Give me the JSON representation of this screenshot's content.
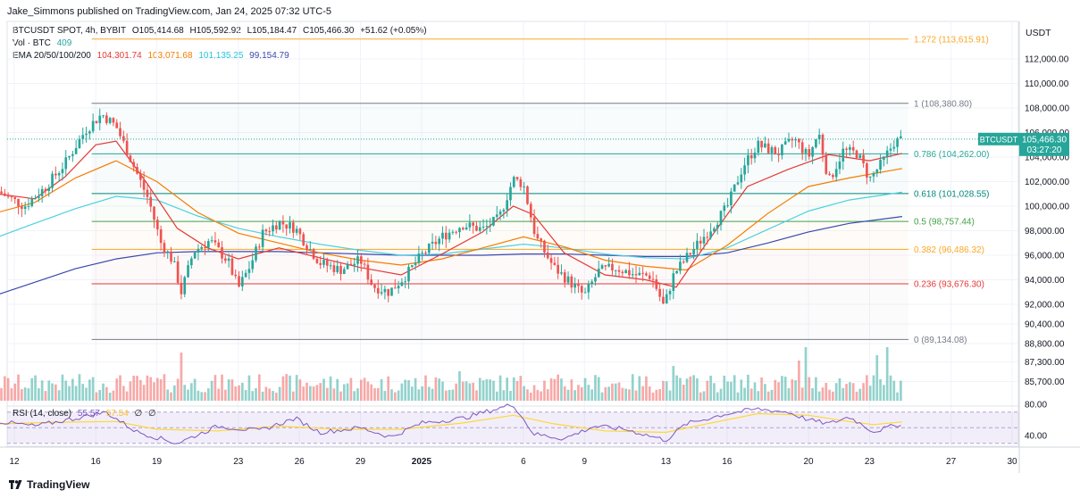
{
  "header": {
    "publisher_line": "Jake_Simmons published on TradingView.com, Jan 24, 2025 07:32 UTC-5"
  },
  "legend": {
    "symbol_line": "BTCUSDT SPOT, 4h, BYBIT",
    "ohlc": [
      {
        "k": "O",
        "v": "105,414.68"
      },
      {
        "k": "H",
        "v": "105,592.92"
      },
      {
        "k": "L",
        "v": "105,184.47"
      },
      {
        "k": "C",
        "v": "105,466.30"
      }
    ],
    "change": "+51.62 (+0.05%)",
    "vol_label": "Vol · BTC",
    "vol_value": "409",
    "ema_label": "EMA 20/50/100/200",
    "ema_values": [
      "104,301.74",
      "103,071.68",
      "101,135.25",
      "99,154.79"
    ]
  },
  "rsi_label": "RSI (14, close)",
  "rsi_value": "55.57",
  "rsi_value2": "57.54",
  "rsi_empty1": "∅",
  "rsi_empty2": "∅",
  "footer": {
    "brand": "TradingView"
  },
  "price_tag": {
    "symbol": "BTCUSDT",
    "price": "105,466.30",
    "countdown": "03:27:20"
  },
  "colors": {
    "up": "#26a69a",
    "down": "#ef5350",
    "ema20": "#e53935",
    "ema50": "#f57c00",
    "ema100": "#4dd0e1",
    "ema200": "#3949ab",
    "rsi": "#7e57c2",
    "rsi_ma": "#fdd835"
  },
  "chart_data": {
    "type": "candlestick",
    "currency_label": "USDT",
    "y_ticks": [
      "112,000.00",
      "110,000.00",
      "108,000.00",
      "106,000.00",
      "104,000.00",
      "102,000.00",
      "100,000.00",
      "98,000.00",
      "96,000.00",
      "94,000.00",
      "92,000.00",
      "90,400.00",
      "88,800.00",
      "87,300.00",
      "85,700.00"
    ],
    "y_tick_values": [
      112000,
      110000,
      108000,
      106000,
      104000,
      102000,
      100000,
      98000,
      96000,
      94000,
      92000,
      90400,
      88800,
      87300,
      85700
    ],
    "rsi_ticks": [
      "80.00",
      "40.00"
    ],
    "x_ticks": [
      {
        "label": "12",
        "day": 12
      },
      {
        "label": "16",
        "day": 16
      },
      {
        "label": "19",
        "day": 19
      },
      {
        "label": "23",
        "day": 23
      },
      {
        "label": "26",
        "day": 26
      },
      {
        "label": "29",
        "day": 29
      },
      {
        "label": "2025",
        "day": 32,
        "bold": true
      },
      {
        "label": "6",
        "day": 37
      },
      {
        "label": "9",
        "day": 40
      },
      {
        "label": "13",
        "day": 44
      },
      {
        "label": "16",
        "day": 47
      },
      {
        "label": "20",
        "day": 51
      },
      {
        "label": "23",
        "day": 54
      },
      {
        "label": "27",
        "day": 58
      },
      {
        "label": "30",
        "day": 61
      }
    ],
    "fib_levels": [
      {
        "ratio": 1.272,
        "label": "1.272 (113,615.91)",
        "price": 113615.91,
        "color": "#f9a825"
      },
      {
        "ratio": 1,
        "label": "1 (108,380.80)",
        "price": 108380.8,
        "color": "#787b86"
      },
      {
        "ratio": 0.786,
        "label": "0.786 (104,262.00)",
        "price": 104262.0,
        "color": "#26a69a"
      },
      {
        "ratio": 0.618,
        "label": "0.618 (101,028.55)",
        "price": 101028.55,
        "color": "#00897b"
      },
      {
        "ratio": 0.5,
        "label": "0.5 (98,757.44)",
        "price": 98757.44,
        "color": "#43a047"
      },
      {
        "ratio": 0.382,
        "label": "0.382 (96,486.32)",
        "price": 96486.32,
        "color": "#f9a825"
      },
      {
        "ratio": 0.236,
        "label": "0.236 (93,676.30)",
        "price": 93676.3,
        "color": "#e53935"
      },
      {
        "ratio": 0,
        "label": "0 (89,134.08)",
        "price": 89134.08,
        "color": "#787b86"
      }
    ],
    "last_price": 105466.3,
    "price_path": [
      [
        11.2,
        101200
      ],
      [
        12.5,
        100000
      ],
      [
        13.5,
        101500
      ],
      [
        14.5,
        103500
      ],
      [
        15.5,
        106200
      ],
      [
        16.3,
        107500
      ],
      [
        17,
        106500
      ],
      [
        17.8,
        103500
      ],
      [
        18.6,
        100500
      ],
      [
        19.2,
        97000
      ],
      [
        19.8,
        95500
      ],
      [
        20.2,
        93000
      ],
      [
        20.8,
        96300
      ],
      [
        21.6,
        97200
      ],
      [
        22.5,
        95500
      ],
      [
        23,
        93300
      ],
      [
        23.6,
        95200
      ],
      [
        24.2,
        97800
      ],
      [
        25,
        98700
      ],
      [
        25.8,
        98200
      ],
      [
        26.3,
        97000
      ],
      [
        27,
        95400
      ],
      [
        28,
        94800
      ],
      [
        29,
        95600
      ],
      [
        29.6,
        93500
      ],
      [
        30.4,
        93000
      ],
      [
        31.2,
        94300
      ],
      [
        32,
        96000
      ],
      [
        33,
        97500
      ],
      [
        34,
        98500
      ],
      [
        35,
        98100
      ],
      [
        35.8,
        99000
      ],
      [
        36.5,
        102200
      ],
      [
        37,
        101800
      ],
      [
        37.6,
        97500
      ],
      [
        38.5,
        95000
      ],
      [
        39.3,
        93800
      ],
      [
        40,
        92700
      ],
      [
        40.7,
        94700
      ],
      [
        41.5,
        95000
      ],
      [
        42.5,
        94400
      ],
      [
        43.3,
        94300
      ],
      [
        43.9,
        91800
      ],
      [
        44.4,
        94500
      ],
      [
        45.2,
        96200
      ],
      [
        46,
        97800
      ],
      [
        47,
        99900
      ],
      [
        47.8,
        103300
      ],
      [
        48.5,
        105000
      ],
      [
        49.5,
        104300
      ],
      [
        50.3,
        105500
      ],
      [
        51,
        104000
      ],
      [
        51.5,
        106000
      ],
      [
        52,
        102000
      ],
      [
        52.7,
        104500
      ],
      [
        53.4,
        104300
      ],
      [
        54,
        102200
      ],
      [
        54.6,
        103500
      ],
      [
        55.2,
        105200
      ],
      [
        55.6,
        105466
      ]
    ],
    "ema20": [
      [
        11.2,
        101000
      ],
      [
        13,
        100600
      ],
      [
        14.5,
        102400
      ],
      [
        16,
        105000
      ],
      [
        17,
        105300
      ],
      [
        18.5,
        101900
      ],
      [
        20,
        98200
      ],
      [
        21.5,
        96600
      ],
      [
        23,
        95700
      ],
      [
        25,
        96600
      ],
      [
        27,
        95800
      ],
      [
        29,
        95000
      ],
      [
        31,
        94400
      ],
      [
        33,
        96100
      ],
      [
        35,
        97900
      ],
      [
        36.5,
        100000
      ],
      [
        37.5,
        99300
      ],
      [
        39,
        96200
      ],
      [
        41,
        94400
      ],
      [
        43,
        94000
      ],
      [
        44.5,
        93400
      ],
      [
        46,
        97000
      ],
      [
        48,
        101600
      ],
      [
        50,
        103000
      ],
      [
        52,
        104200
      ],
      [
        54,
        103700
      ],
      [
        55.6,
        104301
      ]
    ],
    "ema50": [
      [
        11.2,
        99500
      ],
      [
        13,
        100300
      ],
      [
        15,
        102300
      ],
      [
        17,
        103700
      ],
      [
        19,
        102000
      ],
      [
        21,
        99500
      ],
      [
        23,
        97800
      ],
      [
        25,
        97000
      ],
      [
        27,
        96200
      ],
      [
        29,
        95600
      ],
      [
        31,
        95200
      ],
      [
        33,
        95700
      ],
      [
        35,
        96600
      ],
      [
        37,
        97500
      ],
      [
        39,
        96700
      ],
      [
        41,
        95600
      ],
      [
        43,
        95100
      ],
      [
        45,
        94800
      ],
      [
        47,
        96800
      ],
      [
        49,
        99400
      ],
      [
        51,
        101600
      ],
      [
        53,
        102300
      ],
      [
        55.6,
        103071
      ]
    ],
    "ema100": [
      [
        11.2,
        97500
      ],
      [
        13,
        98600
      ],
      [
        15,
        99800
      ],
      [
        17,
        100800
      ],
      [
        19,
        100500
      ],
      [
        21,
        99200
      ],
      [
        23,
        98200
      ],
      [
        25,
        97500
      ],
      [
        27,
        96900
      ],
      [
        29,
        96400
      ],
      [
        31,
        96000
      ],
      [
        33,
        96100
      ],
      [
        35,
        96500
      ],
      [
        37,
        96900
      ],
      [
        39,
        96600
      ],
      [
        41,
        96100
      ],
      [
        43,
        95800
      ],
      [
        45,
        95700
      ],
      [
        47,
        96600
      ],
      [
        49,
        98100
      ],
      [
        51,
        99600
      ],
      [
        53,
        100500
      ],
      [
        55.6,
        101135
      ]
    ],
    "ema200": [
      [
        11.2,
        92800
      ],
      [
        13,
        93800
      ],
      [
        15,
        94900
      ],
      [
        17,
        95700
      ],
      [
        19,
        96200
      ],
      [
        21,
        96300
      ],
      [
        23,
        96300
      ],
      [
        25,
        96300
      ],
      [
        27,
        96200
      ],
      [
        29,
        96100
      ],
      [
        31,
        96000
      ],
      [
        33,
        96000
      ],
      [
        35,
        96000
      ],
      [
        37,
        96100
      ],
      [
        39,
        96100
      ],
      [
        41,
        96000
      ],
      [
        43,
        95900
      ],
      [
        45,
        95900
      ],
      [
        47,
        96200
      ],
      [
        49,
        97000
      ],
      [
        51,
        97900
      ],
      [
        53,
        98600
      ],
      [
        55.6,
        99154
      ]
    ],
    "volume_spikes": [
      [
        20.2,
        0.9
      ],
      [
        33.8,
        0.55
      ],
      [
        44.4,
        0.65
      ],
      [
        50.9,
        1.0
      ],
      [
        50.5,
        0.75
      ],
      [
        54.4,
        0.85
      ],
      [
        54.9,
        1.0
      ]
    ],
    "rsi_path": [
      [
        11.2,
        58
      ],
      [
        13,
        52
      ],
      [
        15,
        62
      ],
      [
        16.5,
        70
      ],
      [
        18,
        45
      ],
      [
        20,
        30
      ],
      [
        22,
        52
      ],
      [
        24,
        46
      ],
      [
        25.8,
        62
      ],
      [
        27,
        44
      ],
      [
        29,
        50
      ],
      [
        30.5,
        38
      ],
      [
        32,
        56
      ],
      [
        34,
        62
      ],
      [
        36.5,
        80
      ],
      [
        37.5,
        42
      ],
      [
        39,
        36
      ],
      [
        40.5,
        52
      ],
      [
        42,
        48
      ],
      [
        44,
        34
      ],
      [
        45,
        55
      ],
      [
        47,
        68
      ],
      [
        48.5,
        74
      ],
      [
        50,
        70
      ],
      [
        51,
        60
      ],
      [
        52,
        55
      ],
      [
        53,
        64
      ],
      [
        54.2,
        45
      ],
      [
        55.6,
        55.57
      ]
    ],
    "rsi_ma_path": [
      [
        11.2,
        55
      ],
      [
        14,
        57
      ],
      [
        17,
        58
      ],
      [
        19,
        48
      ],
      [
        22,
        46
      ],
      [
        25,
        52
      ],
      [
        28,
        48
      ],
      [
        31,
        48
      ],
      [
        34,
        56
      ],
      [
        36.5,
        66
      ],
      [
        38.5,
        55
      ],
      [
        41,
        46
      ],
      [
        44,
        44
      ],
      [
        46,
        55
      ],
      [
        48.5,
        68
      ],
      [
        51,
        66
      ],
      [
        53,
        58
      ],
      [
        54.2,
        54
      ],
      [
        55.6,
        57.54
      ]
    ]
  }
}
